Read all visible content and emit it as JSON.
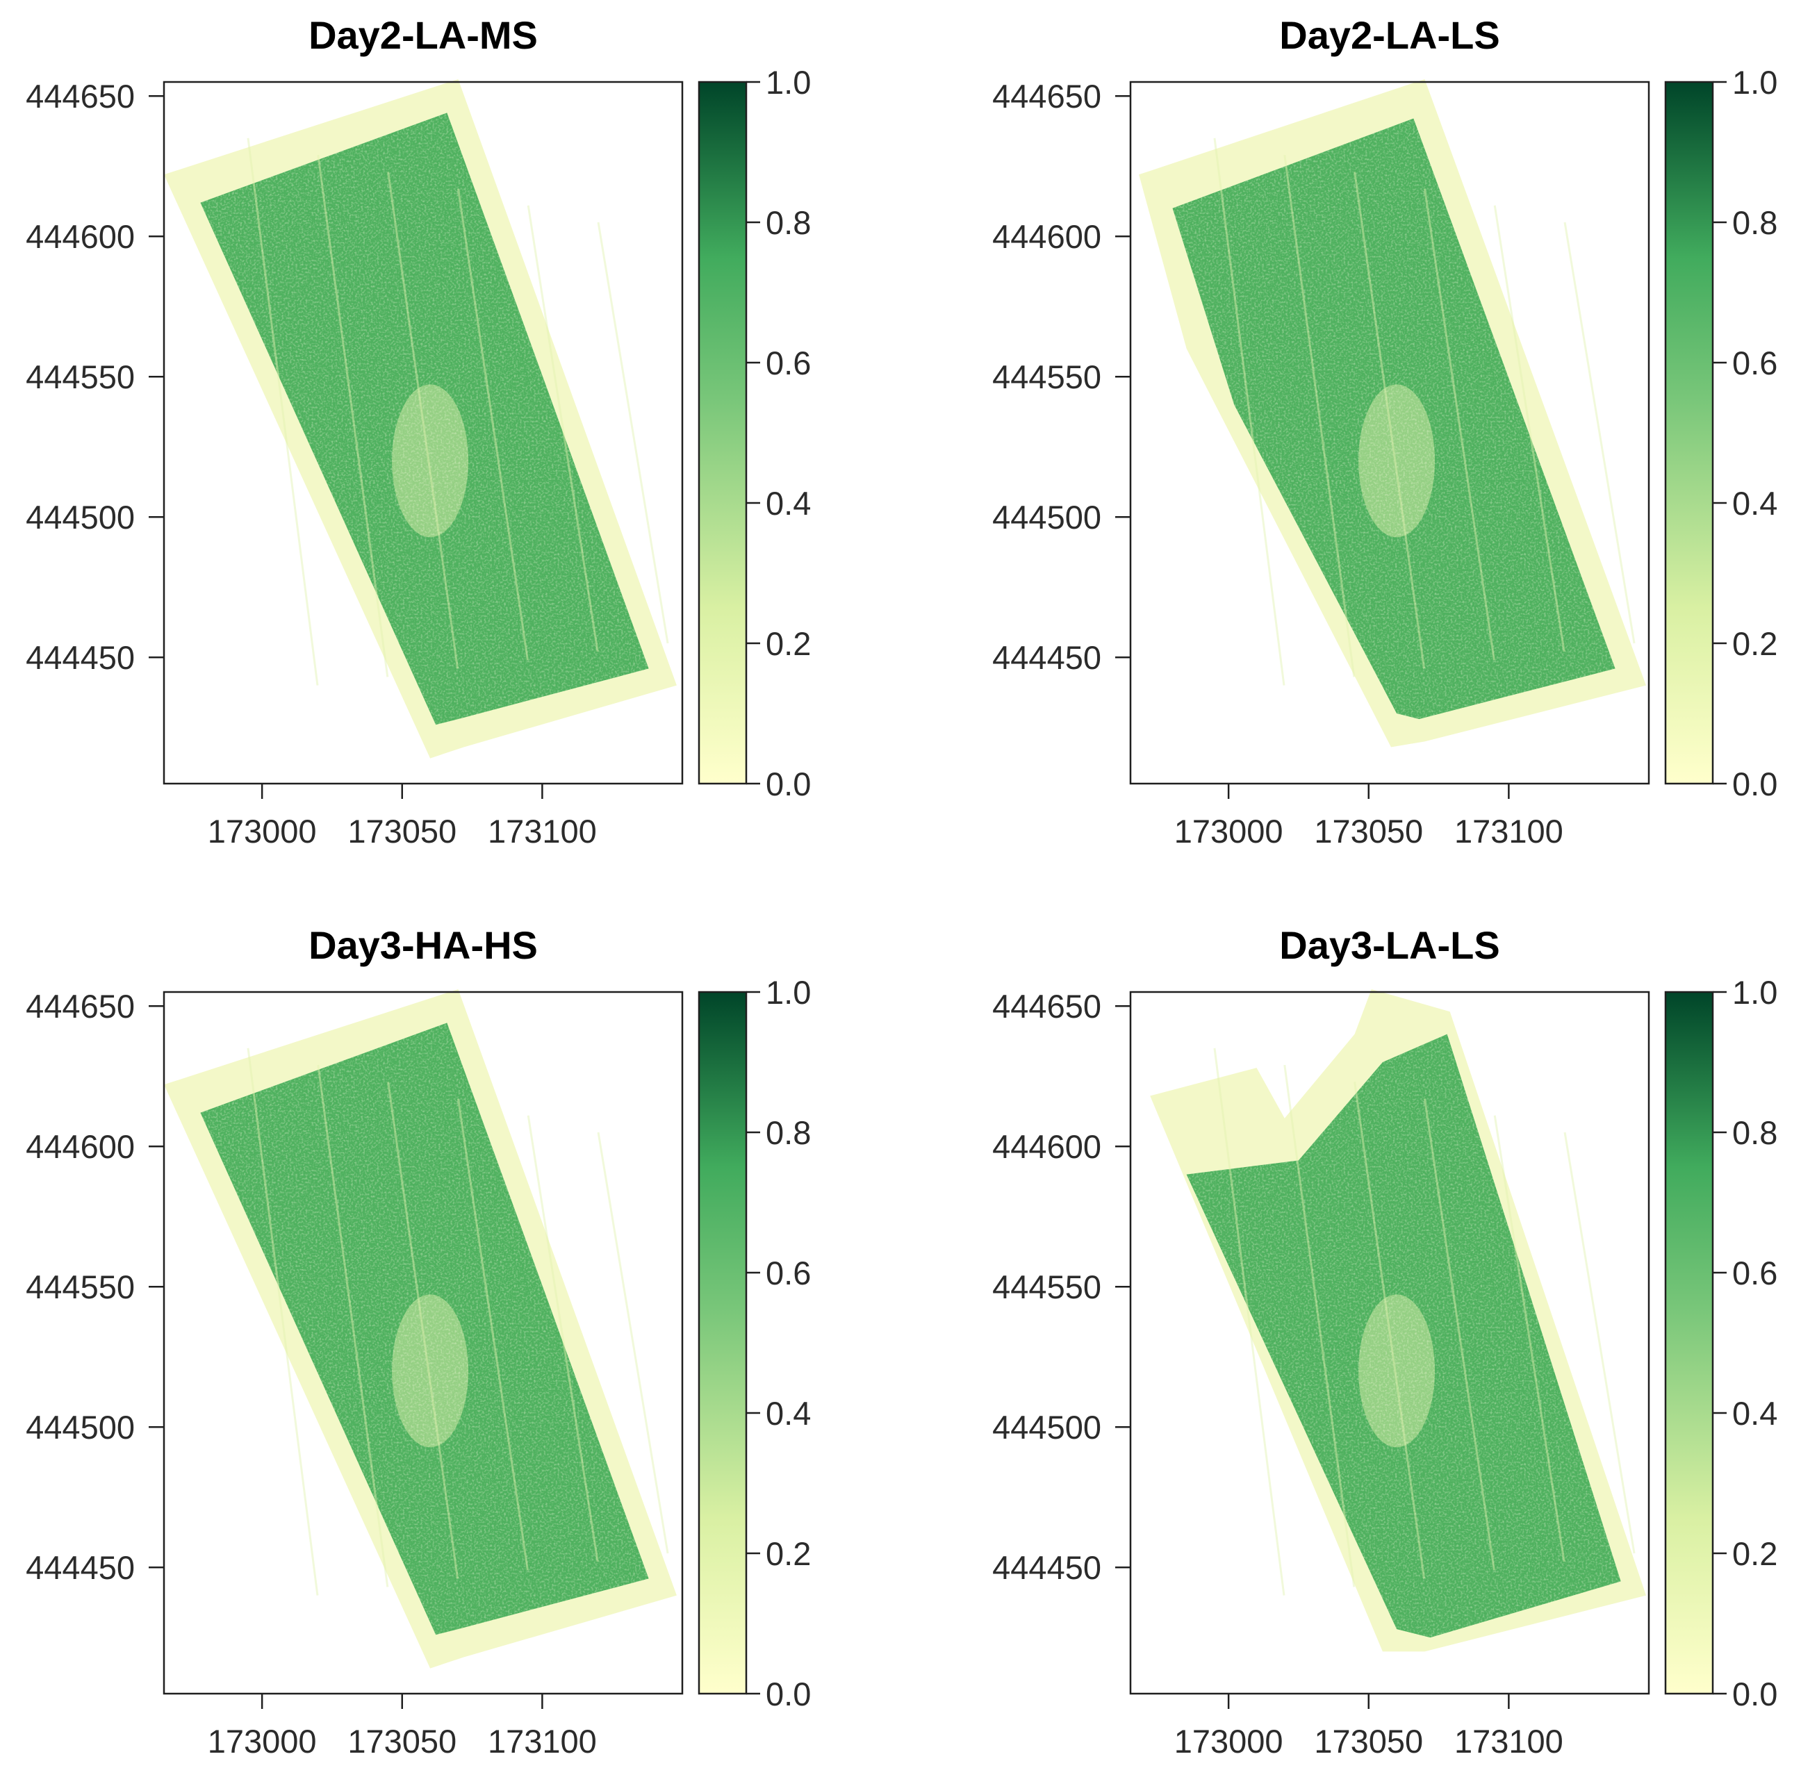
{
  "chart_data": [
    {
      "type": "heatmap",
      "title": "Day2-LA-MS",
      "variant": "full",
      "x_ticks": [
        173000,
        173050,
        173100
      ],
      "y_ticks": [
        444650,
        444600,
        444550,
        444500,
        444450
      ],
      "x_tick_labels": [
        "173000",
        "173050",
        "173100"
      ],
      "y_tick_labels": [
        "444650",
        "444600",
        "444550",
        "444500",
        "444450"
      ],
      "xlim": [
        172965,
        173150
      ],
      "ylim": [
        444405,
        444655
      ],
      "colorbar": {
        "range": [
          0.0,
          1.0
        ],
        "ticks": [
          "1.0",
          "0.8",
          "0.6",
          "0.4",
          "0.2",
          "0.0"
        ]
      }
    },
    {
      "type": "heatmap",
      "title": "Day2-LA-LS",
      "variant": "ragged-left",
      "x_ticks": [
        173000,
        173050,
        173100
      ],
      "y_ticks": [
        444650,
        444600,
        444550,
        444500,
        444450
      ],
      "x_tick_labels": [
        "173000",
        "173050",
        "173100"
      ],
      "y_tick_labels": [
        "444650",
        "444600",
        "444550",
        "444500",
        "444450"
      ],
      "xlim": [
        172965,
        173150
      ],
      "ylim": [
        444405,
        444655
      ],
      "colorbar": {
        "range": [
          0.0,
          1.0
        ],
        "ticks": [
          "1.0",
          "0.8",
          "0.6",
          "0.4",
          "0.2",
          "0.0"
        ]
      }
    },
    {
      "type": "heatmap",
      "title": "Day3-HA-HS",
      "variant": "full",
      "x_ticks": [
        173000,
        173050,
        173100
      ],
      "y_ticks": [
        444650,
        444600,
        444550,
        444500,
        444450
      ],
      "x_tick_labels": [
        "173000",
        "173050",
        "173100"
      ],
      "y_tick_labels": [
        "444650",
        "444600",
        "444550",
        "444500",
        "444450"
      ],
      "xlim": [
        172965,
        173150
      ],
      "ylim": [
        444405,
        444655
      ],
      "colorbar": {
        "range": [
          0.0,
          1.0
        ],
        "ticks": [
          "1.0",
          "0.8",
          "0.6",
          "0.4",
          "0.2",
          "0.0"
        ]
      }
    },
    {
      "type": "heatmap",
      "title": "Day3-LA-LS",
      "variant": "notched-top",
      "x_ticks": [
        173000,
        173050,
        173100
      ],
      "y_ticks": [
        444650,
        444600,
        444550,
        444500,
        444450
      ],
      "x_tick_labels": [
        "173000",
        "173050",
        "173100"
      ],
      "y_tick_labels": [
        "444650",
        "444600",
        "444550",
        "444500",
        "444450"
      ],
      "xlim": [
        172965,
        173150
      ],
      "ylim": [
        444405,
        444655
      ],
      "colorbar": {
        "range": [
          0.0,
          1.0
        ],
        "ticks": [
          "1.0",
          "0.8",
          "0.6",
          "0.4",
          "0.2",
          "0.0"
        ]
      }
    }
  ],
  "colors": {
    "scale_low": "#ffffcc",
    "scale_mid_low": "#d9f0a3",
    "scale_mid": "#78c679",
    "scale_mid_high": "#41ab5d",
    "scale_high": "#004529",
    "field_fill": "#4fb15f",
    "field_light": "#cfe9a3",
    "field_edge": "#f3f8c8"
  }
}
